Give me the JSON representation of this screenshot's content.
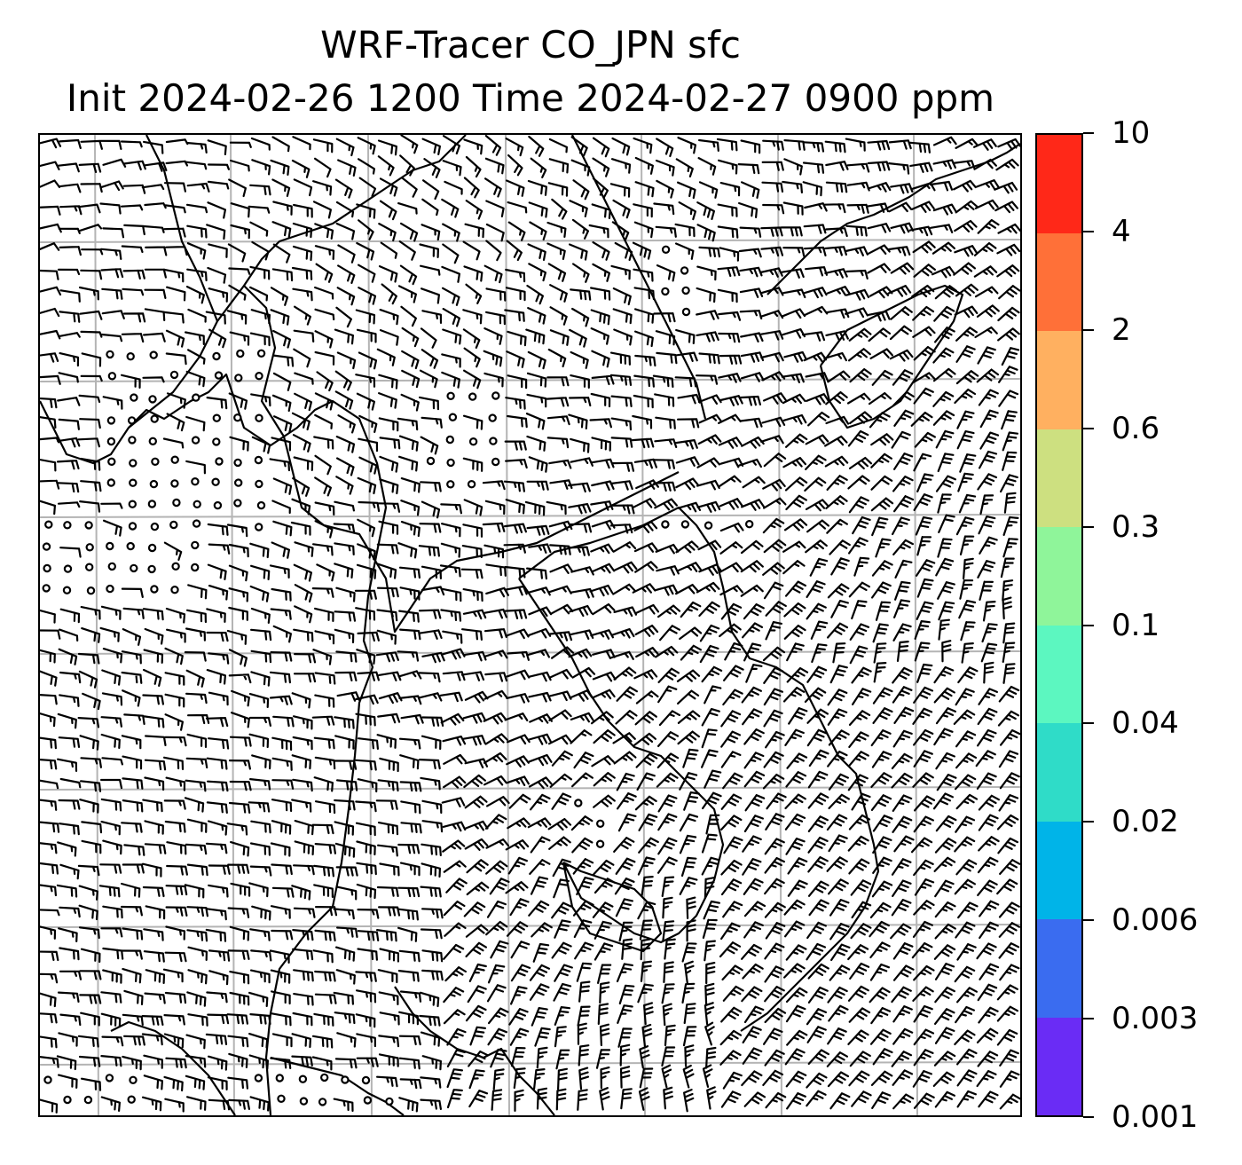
{
  "title": {
    "line1": "WRF-Tracer CO_JPN sfc",
    "line2": "Init 2024-02-26 1200 Time 2024-02-27 0900 ppm"
  },
  "colorbar": {
    "labels": [
      "0.001",
      "0.003",
      "0.006",
      "0.02",
      "0.04",
      "0.1",
      "0.3",
      "0.6",
      "2",
      "4",
      "10"
    ],
    "colors": [
      "#6a2cf5",
      "#3a6cf0",
      "#00b4e8",
      "#2fdcc8",
      "#5cf7c0",
      "#8ff59a",
      "#cde080",
      "#ffb060",
      "#ff7038",
      "#ff2818"
    ]
  },
  "map": {
    "gridlines": "on",
    "gridline_color": "#b4b4b4",
    "barb_color": "#000000",
    "coastline_color": "#000000",
    "features": [
      "coastlines",
      "wind-barbs",
      "calm-circles",
      "lat-lon-grid"
    ]
  }
}
